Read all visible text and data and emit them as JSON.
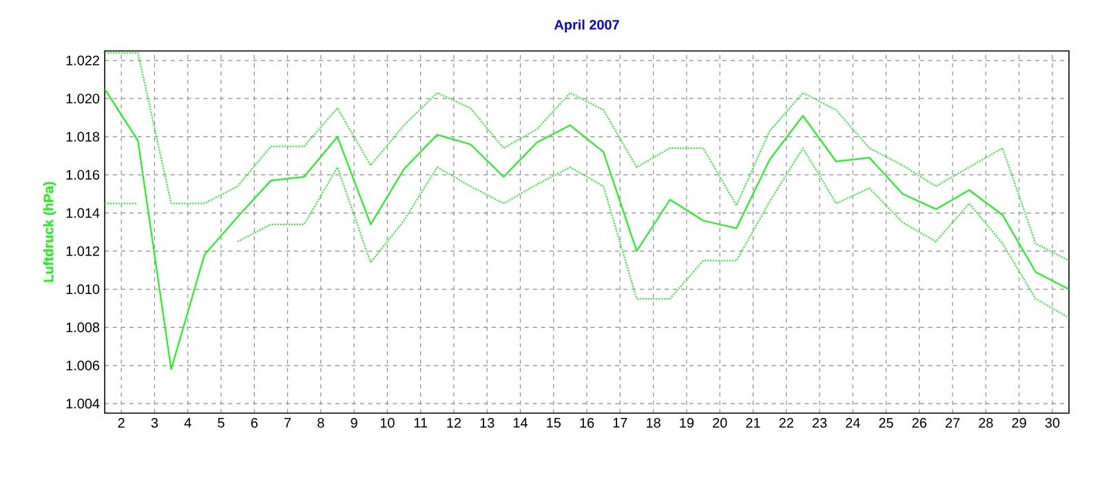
{
  "chart_data": {
    "type": "line",
    "title": "April 2007",
    "ylabel": "Luftdruck  (hPa)",
    "x": [
      1.5,
      2.5,
      3.5,
      4.5,
      5.5,
      6.5,
      7.5,
      8.5,
      9.5,
      10.5,
      11.5,
      12.5,
      13.5,
      14.5,
      15.5,
      16.5,
      17.5,
      18.5,
      19.5,
      20.5,
      21.5,
      22.5,
      23.5,
      24.5,
      25.5,
      26.5,
      27.5,
      28.5,
      29.5,
      30.5
    ],
    "series": [
      {
        "color": "#00ff00",
        "line_style": "dotted",
        "values": [
          1.0224,
          1.0224,
          1.0145,
          1.0145,
          1.0154,
          1.0175,
          1.0175,
          1.0195,
          1.0165,
          1.0186,
          1.0203,
          1.0195,
          1.0174,
          1.0184,
          1.0203,
          1.0194,
          1.0164,
          1.0174,
          1.0174,
          1.0144,
          1.0183,
          1.0203,
          1.0194,
          1.0174,
          1.0165,
          1.0154,
          1.0164,
          1.0174,
          1.0124,
          1.0115
        ]
      },
      {
        "color": "#00ff00",
        "line_style": "solid",
        "values": [
          1.0205,
          1.0178,
          1.0058,
          1.0118,
          1.0138,
          1.0157,
          1.0159,
          1.018,
          1.0134,
          1.0163,
          1.0181,
          1.0176,
          1.0159,
          1.0177,
          1.0186,
          1.0172,
          1.012,
          1.0147,
          1.0136,
          1.0132,
          1.0168,
          1.0191,
          1.0167,
          1.0169,
          1.015,
          1.0142,
          1.0152,
          1.0139,
          1.0109,
          1.01
        ]
      },
      {
        "color": "#00ff00",
        "line_style": "dotted",
        "values": [
          1.0145,
          1.0145,
          null,
          null,
          1.0125,
          1.0134,
          1.0134,
          1.0164,
          1.0114,
          1.0136,
          1.0164,
          1.0154,
          1.0145,
          1.0155,
          1.0164,
          1.0154,
          1.0095,
          1.0095,
          1.0115,
          1.0115,
          1.0146,
          1.0174,
          1.0145,
          1.0153,
          1.0135,
          1.0125,
          1.0145,
          1.0124,
          1.0095,
          1.0085
        ]
      }
    ],
    "xlim": [
      1.5,
      30.5
    ],
    "ylim": [
      1.0035,
      1.0225
    ],
    "xticks": [
      2,
      3,
      4,
      5,
      6,
      7,
      8,
      9,
      10,
      11,
      12,
      13,
      14,
      15,
      16,
      17,
      18,
      19,
      20,
      21,
      22,
      23,
      24,
      25,
      26,
      27,
      28,
      29,
      30
    ],
    "yticks": [
      {
        "value": 1.004,
        "label": "1.004"
      },
      {
        "value": 1.006,
        "label": "1.006"
      },
      {
        "value": 1.008,
        "label": "1.008"
      },
      {
        "value": 1.01,
        "label": "1.010"
      },
      {
        "value": 1.012,
        "label": "1.012"
      },
      {
        "value": 1.014,
        "label": "1.014"
      },
      {
        "value": 1.016,
        "label": "1.016"
      },
      {
        "value": 1.018,
        "label": "1.018"
      },
      {
        "value": 1.02,
        "label": "1.020"
      },
      {
        "value": 1.022,
        "label": "1.022"
      }
    ],
    "grid": true,
    "marker": "none"
  }
}
